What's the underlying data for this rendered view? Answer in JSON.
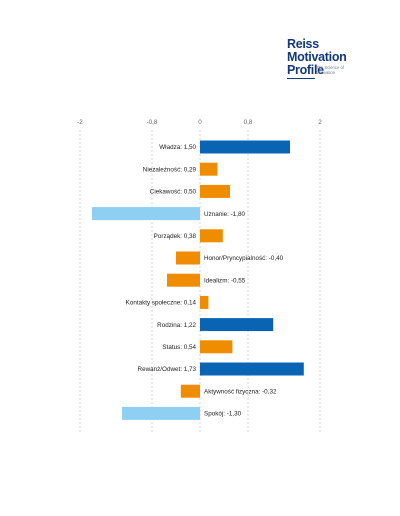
{
  "logo": {
    "line1": "Reiss",
    "line2": "Motivation",
    "line3": "Profile",
    "tagline": "The Science of Motivation"
  },
  "colors": {
    "strong_positive": "#0a64b4",
    "moderate": "#f08c00",
    "strong_negative": "#8fd0f2",
    "gridline": "#bbbbbb",
    "logo": "#123a7a"
  },
  "chart_data": {
    "type": "bar",
    "orientation": "horizontal",
    "xlim": [
      -2,
      2
    ],
    "ticks": [
      -2,
      -0.8,
      0,
      0.8,
      2
    ],
    "tick_labels": [
      "-2",
      "-0,8",
      "0",
      "0,8",
      "2"
    ],
    "grid": "dashed vertical lines at ticks",
    "categories": [
      "Władza: 1,50",
      "Niezależność: 0,29",
      "Ciekawość: 0,50",
      "Uznanie: -1,80",
      "Porządek: 0,38",
      "Honor/Pryncypialność: -0,40",
      "Idealizm: -0,55",
      "Kontakty społeczne: 0,14",
      "Rodzina: 1,22",
      "Status: 0,54",
      "Rewanż/Odwet: 1,73",
      "Aktywność fizyczna: -0,32",
      "Spokój: -1,30"
    ],
    "values": [
      1.5,
      0.29,
      0.5,
      -1.8,
      0.38,
      -0.4,
      -0.55,
      0.14,
      1.22,
      0.54,
      1.73,
      -0.32,
      -1.3
    ]
  }
}
